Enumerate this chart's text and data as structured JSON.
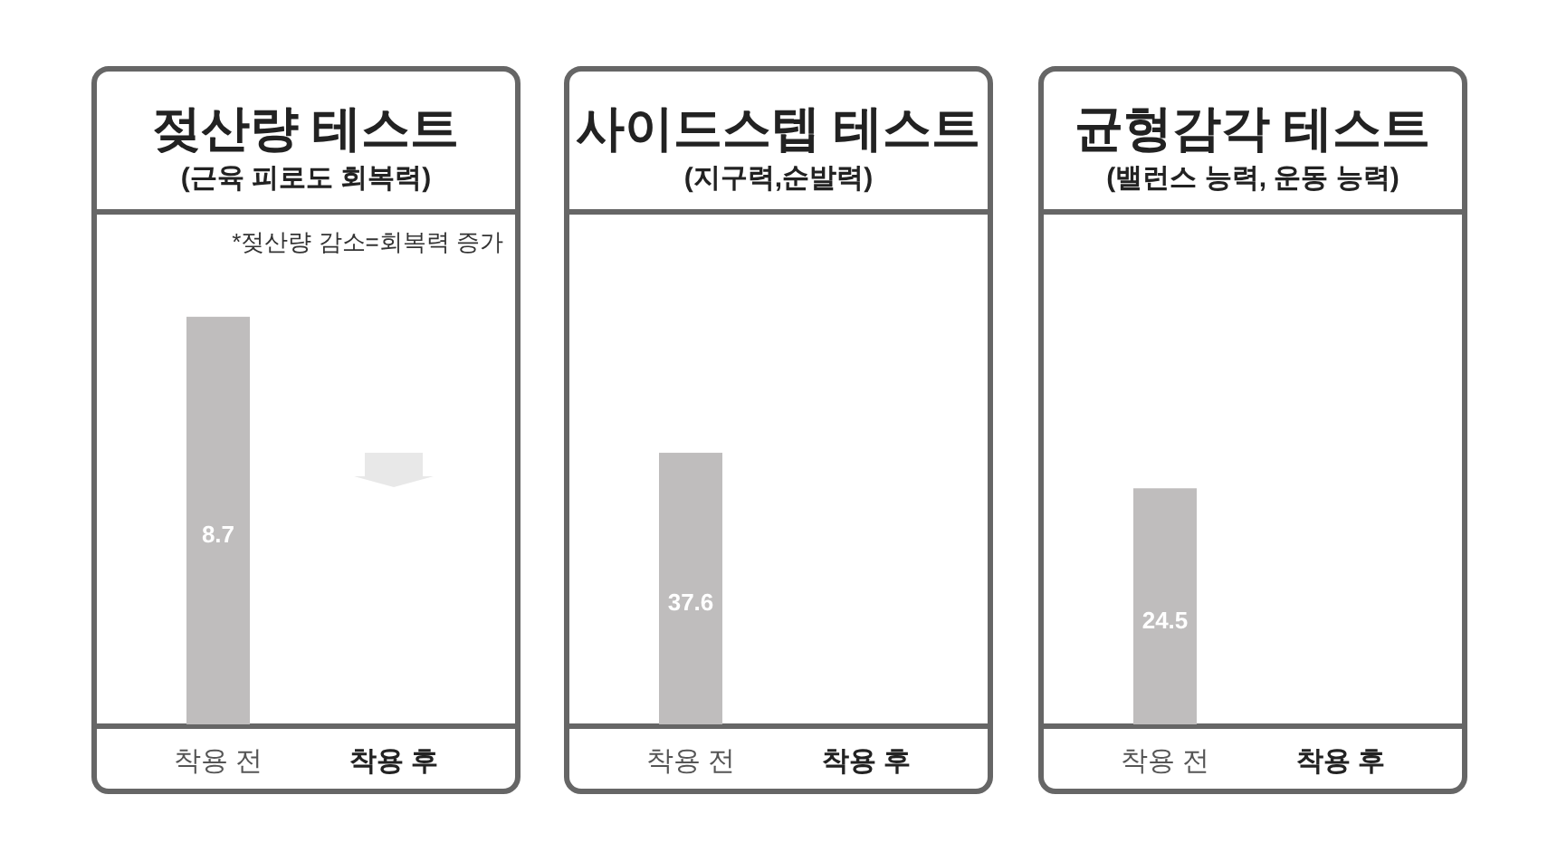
{
  "chart_data": [
    {
      "type": "bar",
      "title": "젖산량 테스트",
      "subtitle": "(근육 피로도 회복력)",
      "annotations": [
        "*젖산량 감소=회복력 증가"
      ],
      "categories": [
        "착용 전",
        "착용 후"
      ],
      "values": [
        8.7,
        null
      ],
      "color": "#bfbdbd",
      "ylim": [
        0,
        10.9
      ],
      "data_labels": true
    },
    {
      "type": "bar",
      "title": "사이드스텝 테스트",
      "subtitle": "(지구력,순발력)",
      "categories": [
        "착용 전",
        "착용 후"
      ],
      "values": [
        37.6,
        null
      ],
      "color": "#bfbdbd",
      "ylim": [
        0,
        70.7
      ],
      "data_labels": true
    },
    {
      "type": "bar",
      "title": "균형감각 테스트",
      "subtitle": "(밸런스 능력, 운동 능력)",
      "categories": [
        "착용 전",
        "착용 후"
      ],
      "values": [
        24.5,
        null
      ],
      "color": "#bfbdbd",
      "ylim": [
        0,
        53
      ],
      "data_labels": true
    }
  ]
}
